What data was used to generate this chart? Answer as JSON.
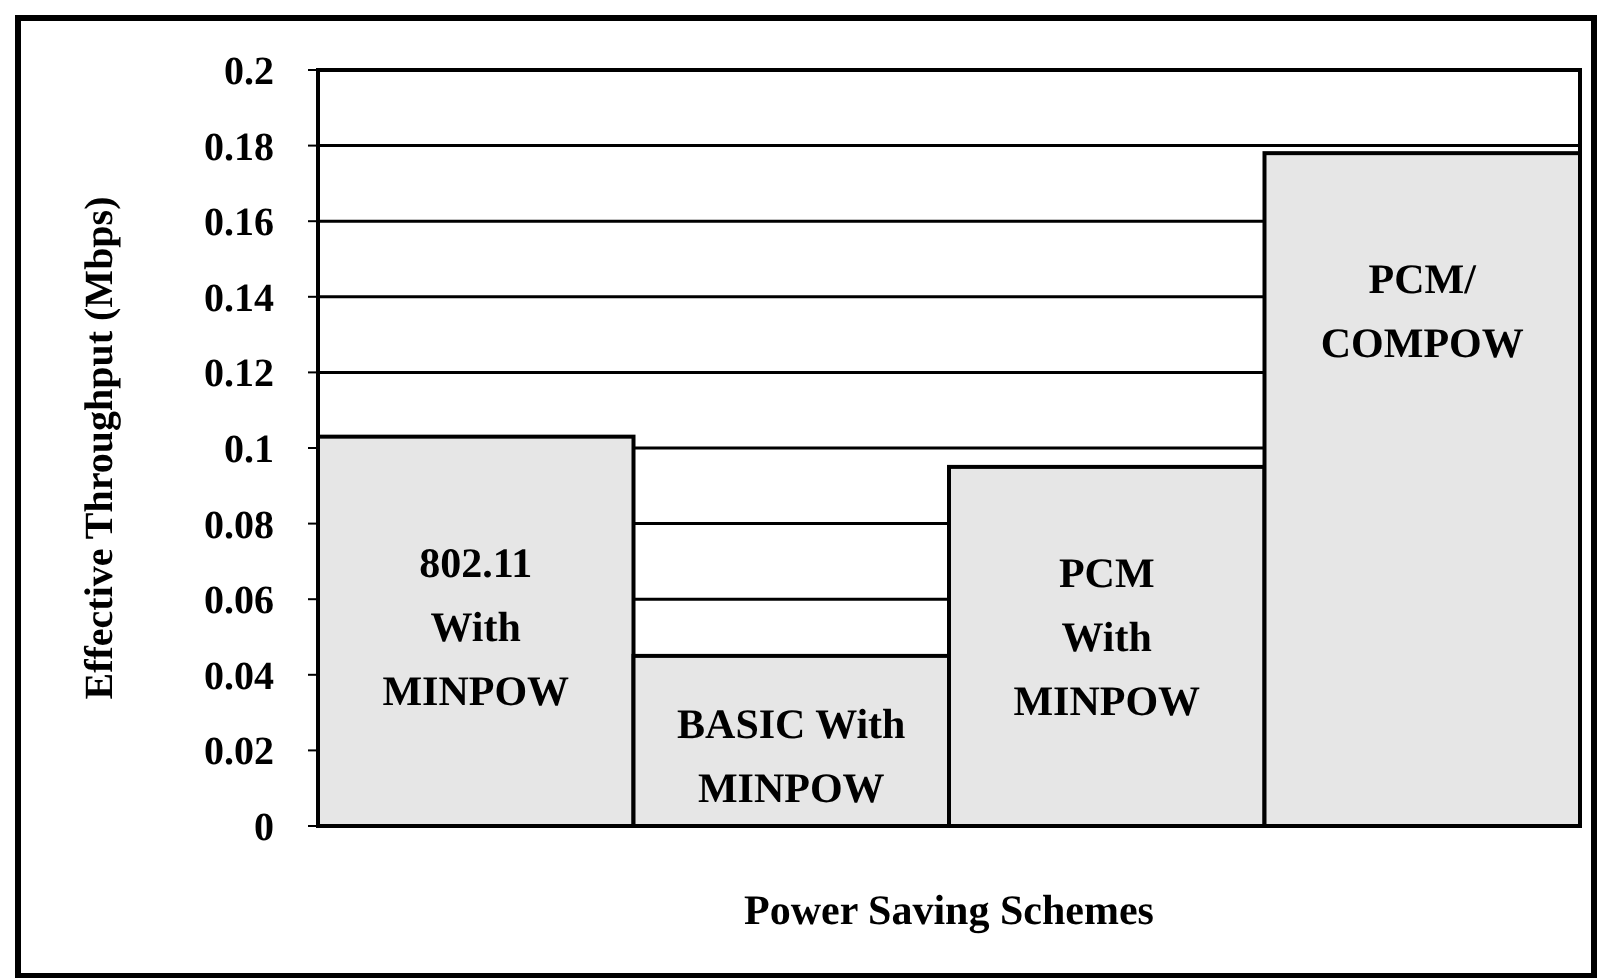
{
  "chart_data": {
    "type": "bar",
    "xlabel": "Power Saving Schemes",
    "ylabel": "Effective Throughput (Mbps)",
    "categories": [
      "802.11\nWith\nMINPOW",
      "BASIC With\nMINPOW",
      "PCM\nWith\nMINPOW",
      "PCM/\nCOMPOW"
    ],
    "values": [
      0.103,
      0.045,
      0.095,
      0.178
    ],
    "color": "#e6e6e6",
    "ylim": [
      0,
      0.2
    ],
    "yticks": [
      0,
      0.02,
      0.04,
      0.06,
      0.08,
      0.1,
      0.12,
      0.14,
      0.16,
      0.18,
      0.2
    ],
    "grid": "y"
  }
}
